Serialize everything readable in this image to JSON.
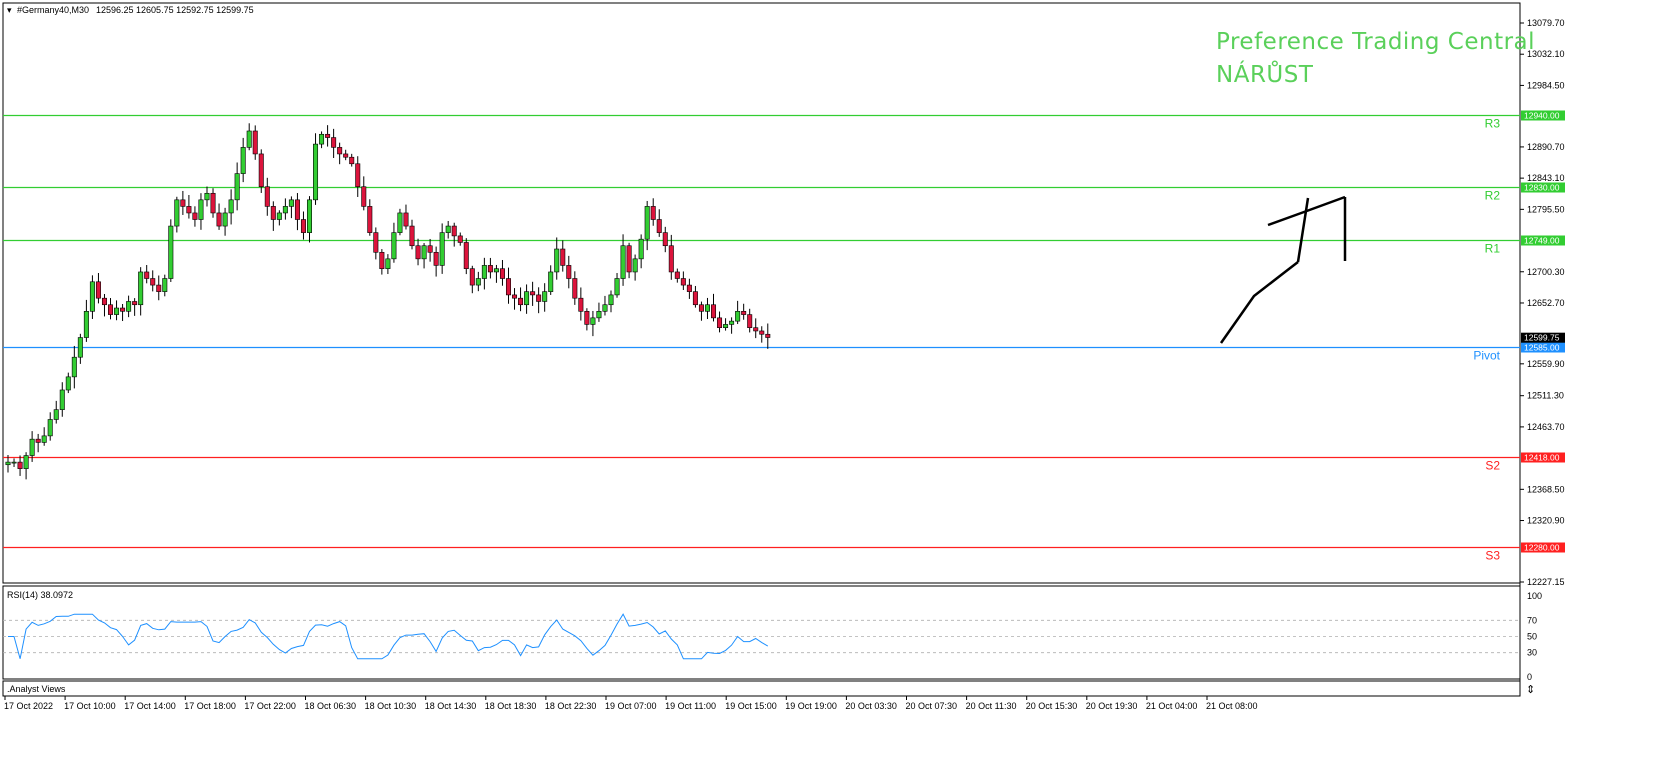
{
  "header": {
    "symbol": "#Germany40,M30",
    "ohlc": "12596.25 12605.75 12592.75 12599.75"
  },
  "overlay": {
    "line1": "Preference Trading Central",
    "line2": "NÁRŮST",
    "color": "#5ad05a"
  },
  "rsi_panel": {
    "label": "RSI(14) 38.0972",
    "value": 38.0972,
    "levels": [
      "70",
      "50",
      "30"
    ],
    "scale": [
      "100",
      "70",
      "50",
      "30",
      "0"
    ],
    "line_color": "#1e90ff"
  },
  "bottom_panel": {
    "label": ".Analyst Views"
  },
  "colors": {
    "bull": "#32cd32",
    "bear": "#dc143c",
    "resistance": "#32cd32",
    "pivot": "#1e90ff",
    "support": "#ff2020",
    "arrow": "#000000"
  },
  "chart_data": {
    "type": "candlestick",
    "symbol": "#Germany40",
    "timeframe": "M30",
    "y_range": [
      12227.15,
      13079.7
    ],
    "price_scale": [
      "13079.70",
      "13032.10",
      "12984.50",
      "12890.70",
      "12843.10",
      "12795.50",
      "12700.30",
      "12652.70",
      "12559.90",
      "12511.30",
      "12463.70",
      "12368.50",
      "12320.90",
      "12227.15"
    ],
    "x_labels": [
      "17 Oct 2022",
      "17 Oct 10:00",
      "17 Oct 14:00",
      "17 Oct 18:00",
      "17 Oct 22:00",
      "18 Oct 06:30",
      "18 Oct 10:30",
      "18 Oct 14:30",
      "18 Oct 18:30",
      "18 Oct 22:30",
      "19 Oct 07:00",
      "19 Oct 11:00",
      "19 Oct 15:00",
      "19 Oct 19:00",
      "20 Oct 03:30",
      "20 Oct 07:30",
      "20 Oct 11:30",
      "20 Oct 15:30",
      "20 Oct 19:30",
      "21 Oct 04:00",
      "21 Oct 08:00"
    ],
    "current_price": {
      "value": 12599.75,
      "label": "12599.75"
    },
    "levels": [
      {
        "name": "R3",
        "value": 12940.0,
        "label": "12940.00",
        "kind": "resistance"
      },
      {
        "name": "R2",
        "value": 12830.0,
        "label": "12830.00",
        "kind": "resistance"
      },
      {
        "name": "R1",
        "value": 12749.0,
        "label": "12749.00",
        "kind": "resistance"
      },
      {
        "name": "Pivot",
        "value": 12585.0,
        "label": "12585.00",
        "kind": "pivot"
      },
      {
        "name": "S2",
        "value": 12418.0,
        "label": "12418.00",
        "kind": "support"
      },
      {
        "name": "S3",
        "value": 12280.0,
        "label": "12280.00",
        "kind": "support"
      }
    ],
    "close_path": [
      12410,
      12410,
      12400,
      12420,
      12445,
      12440,
      12450,
      12475,
      12490,
      12520,
      12540,
      12570,
      12600,
      12640,
      12685,
      12660,
      12650,
      12635,
      12645,
      12640,
      12655,
      12650,
      12700,
      12690,
      12680,
      12670,
      12690,
      12770,
      12810,
      12800,
      12790,
      12780,
      12810,
      12820,
      12790,
      12770,
      12790,
      12810,
      12850,
      12890,
      12915,
      12880,
      12830,
      12800,
      12780,
      12790,
      12800,
      12810,
      12780,
      12760,
      12810,
      12895,
      12910,
      12905,
      12890,
      12880,
      12875,
      12865,
      12830,
      12800,
      12760,
      12730,
      12705,
      12720,
      12760,
      12790,
      12770,
      12740,
      12720,
      12740,
      12730,
      12710,
      12760,
      12770,
      12755,
      12745,
      12705,
      12680,
      12690,
      12710,
      12700,
      12705,
      12690,
      12665,
      12660,
      12650,
      12670,
      12665,
      12655,
      12670,
      12700,
      12735,
      12710,
      12690,
      12660,
      12640,
      12620,
      12630,
      12640,
      12650,
      12665,
      12690,
      12740,
      12700,
      12720,
      12750,
      12800,
      12780,
      12760,
      12740,
      12700,
      12690,
      12680,
      12670,
      12650,
      12640,
      12650,
      12630,
      12615,
      12620,
      12625,
      12640,
      12635,
      12615,
      12610,
      12605,
      12600
    ]
  }
}
